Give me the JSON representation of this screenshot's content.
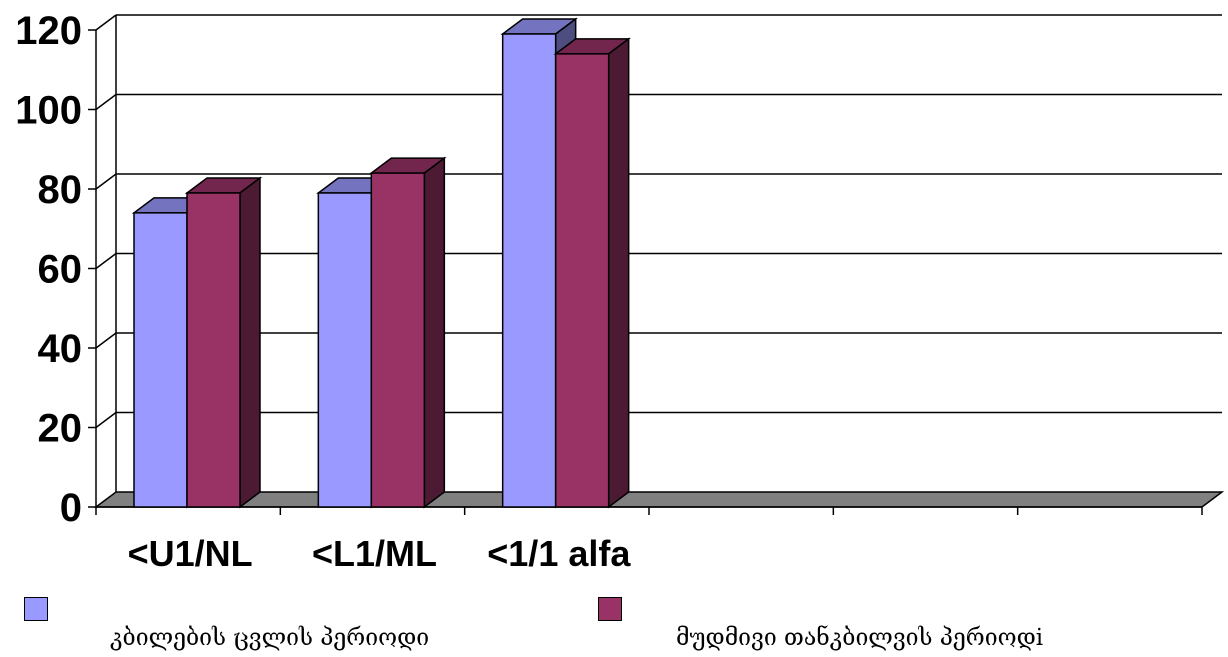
{
  "chart_data": {
    "type": "bar",
    "style": "3d-clustered",
    "categories": [
      "<U1/NL",
      "<L1/ML",
      "<1/1 alfa",
      "",
      "",
      ""
    ],
    "series": [
      {
        "name": "კბილების ცვლის პერიოდი",
        "values": [
          74,
          79,
          119,
          null,
          null,
          null
        ],
        "color": "#9999ff"
      },
      {
        "name": "მუდმივი თანკბილვის პერიოდi",
        "values": [
          79,
          84,
          114,
          null,
          null,
          null
        ],
        "color": "#993366"
      }
    ],
    "yticks": [
      "0",
      "20",
      "40",
      "60",
      "80",
      "100",
      "120"
    ],
    "ylim": [
      0,
      120
    ],
    "grid": true,
    "legend": "bottom",
    "floor_color": "#808080"
  }
}
